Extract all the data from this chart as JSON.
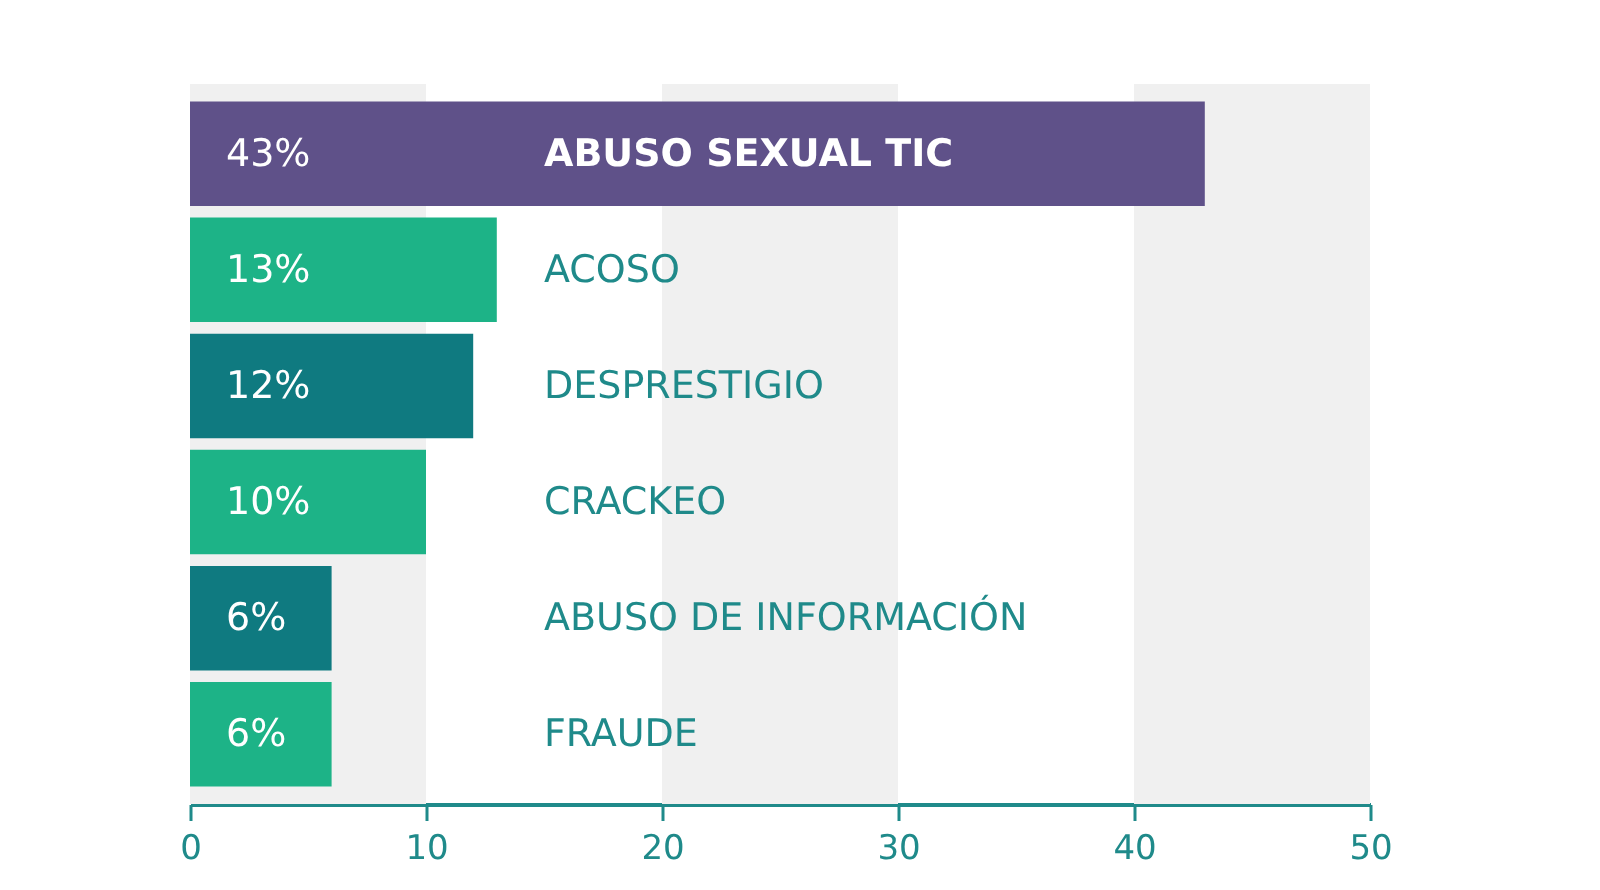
{
  "chart_data": {
    "type": "bar",
    "orientation": "horizontal",
    "categories": [
      "ABUSO SEXUAL TIC",
      "ACOSO",
      "DESPRESTIGIO",
      "CRACKEO",
      "ABUSO DE INFORMACIÓN",
      "FRAUDE"
    ],
    "values": [
      43,
      13,
      12,
      10,
      6,
      6
    ],
    "colors": [
      "#5f5189",
      "#1db387",
      "#0f7a80",
      "#1db387",
      "#0f7a80",
      "#1db387"
    ],
    "value_labels": [
      "43%",
      "13%",
      "12%",
      "10%",
      "6%",
      "6%"
    ],
    "xlim": [
      0,
      50
    ],
    "xticks": [
      0,
      10,
      20,
      30,
      40,
      50
    ],
    "bands": [
      {
        "axis": "x",
        "from": 0,
        "to": 10,
        "color": "#f0f0f0"
      },
      {
        "axis": "x",
        "from": 20,
        "to": 30,
        "color": "#f0f0f0"
      },
      {
        "axis": "x",
        "from": 40,
        "to": 50,
        "color": "#f0f0f0"
      }
    ],
    "grid": false
  }
}
